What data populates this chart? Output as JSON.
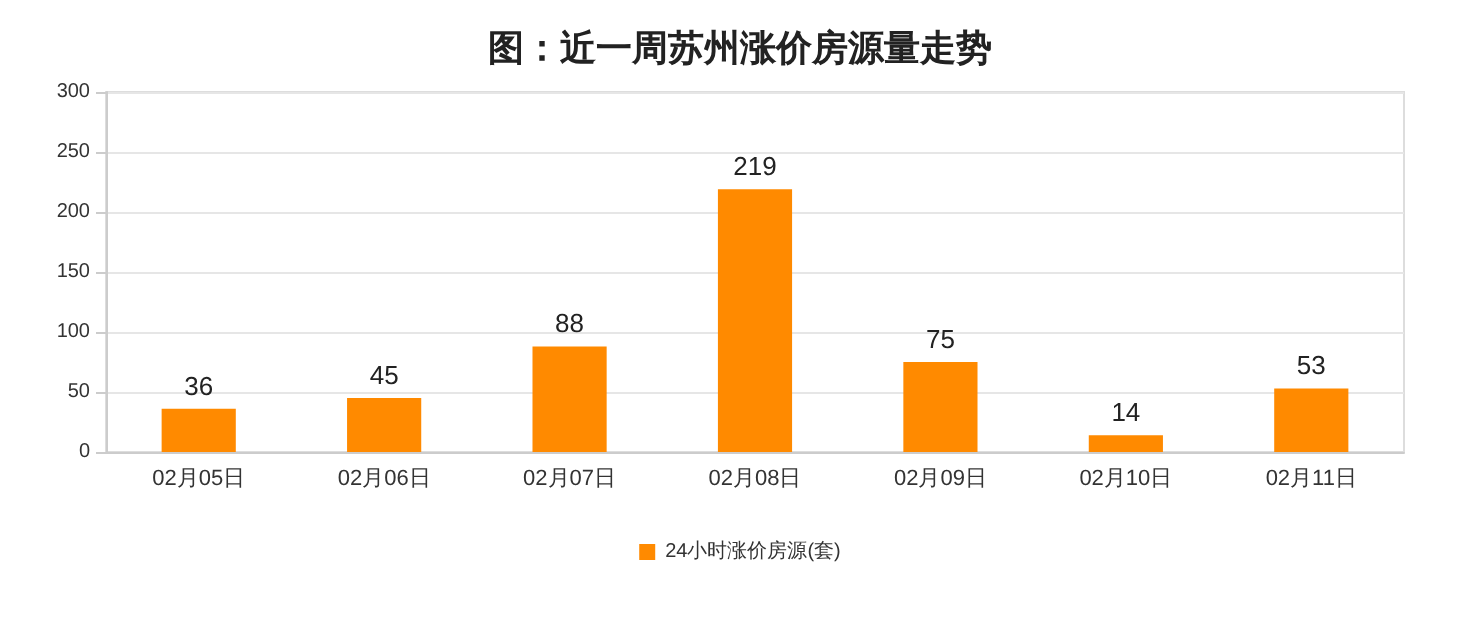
{
  "chart_data": {
    "type": "bar",
    "title": "图：近一周苏州涨价房源量走势",
    "categories": [
      "02月05日",
      "02月06日",
      "02月07日",
      "02月08日",
      "02月09日",
      "02月10日",
      "02月11日"
    ],
    "series": [
      {
        "name": "24小时涨价房源(套)",
        "color": "#ff8a00",
        "values": [
          36,
          45,
          88,
          219,
          75,
          14,
          53
        ]
      }
    ],
    "ylim": [
      0,
      300
    ],
    "yticks": [
      0,
      50,
      100,
      150,
      200,
      250,
      300
    ],
    "grid": "y",
    "legend": "bottom",
    "data_labels": true
  }
}
